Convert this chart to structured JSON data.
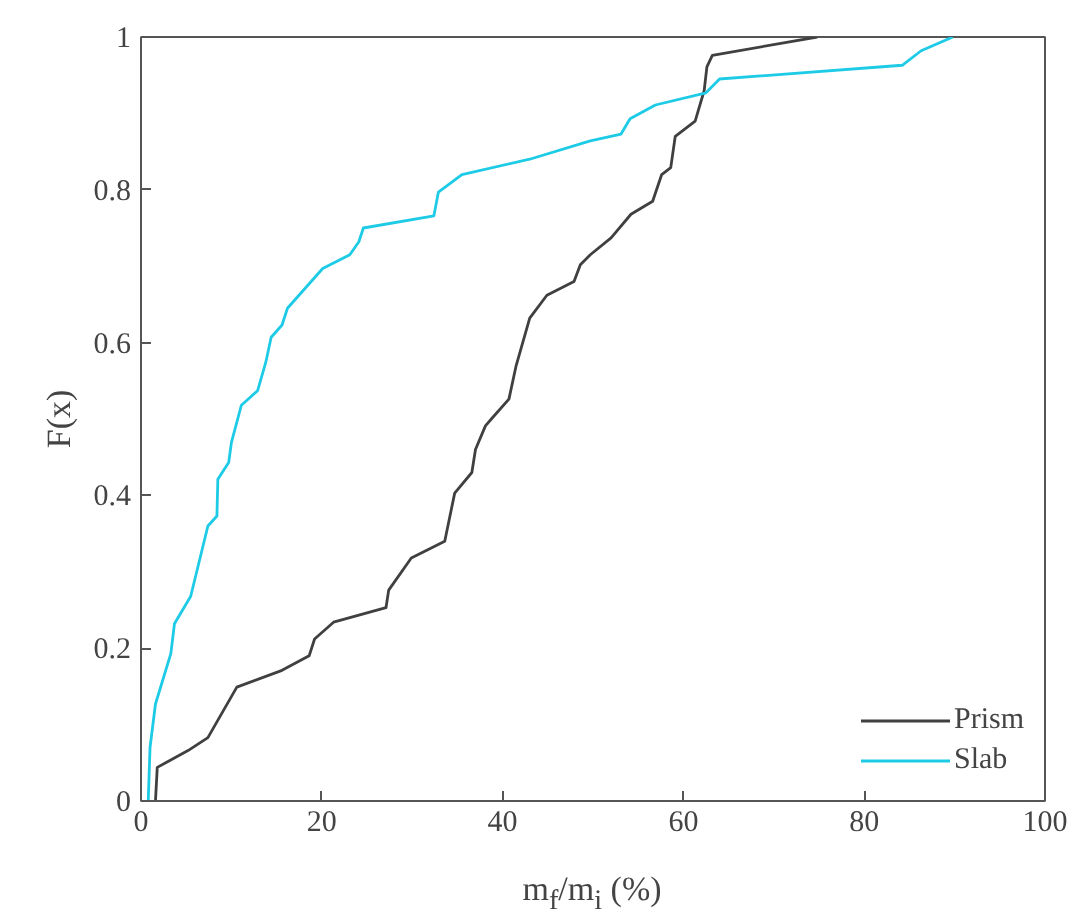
{
  "chart_data": {
    "type": "line",
    "xlabel": "m$_{f}$/m$_{i}$ (%)",
    "ylabel": "F(x)",
    "xlim": [
      0,
      100
    ],
    "ylim": [
      0,
      1
    ],
    "xticks": [
      0,
      20,
      40,
      60,
      80,
      100
    ],
    "yticks": [
      0,
      0.2,
      0.4,
      0.6,
      0.8,
      1
    ],
    "grid": false,
    "legend": "bottom right",
    "line_style": "solid",
    "marker": "none",
    "series": [
      {
        "name": "Prism",
        "color": "#404040",
        "x": [
          1.6,
          1.8,
          5.2,
          7.4,
          10.6,
          15.6,
          18.6,
          19.2,
          21.3,
          27.1,
          27.4,
          29.9,
          33.6,
          34.7,
          36.6,
          37.0,
          38.1,
          38.9,
          40.7,
          41.5,
          43.0,
          44.9,
          47.9,
          48.6,
          49.7,
          52.0,
          54.2,
          56.6,
          57.6,
          58.6,
          59.1,
          61.3,
          62.3,
          62.6,
          63.2,
          74.8
        ],
        "values": [
          0,
          0.044,
          0.066,
          0.083,
          0.149,
          0.171,
          0.19,
          0.212,
          0.234,
          0.253,
          0.276,
          0.318,
          0.34,
          0.403,
          0.43,
          0.46,
          0.491,
          0.502,
          0.526,
          0.57,
          0.632,
          0.662,
          0.68,
          0.702,
          0.715,
          0.737,
          0.768,
          0.785,
          0.82,
          0.829,
          0.87,
          0.89,
          0.93,
          0.961,
          0.976,
          1.0
        ]
      },
      {
        "name": "Slab",
        "color": "#1ecbe6",
        "x": [
          0.8,
          1.0,
          1.6,
          3.3,
          3.7,
          5.5,
          7.4,
          8.4,
          8.5,
          9.7,
          10.0,
          11.1,
          12.9,
          13.8,
          14.4,
          15.6,
          16.2,
          20.1,
          23.1,
          24.1,
          24.6,
          32.4,
          32.9,
          35.5,
          43.0,
          49.7,
          53.1,
          54.1,
          56.9,
          62.5,
          64.0,
          84.2,
          86.3,
          89.8
        ],
        "values": [
          0,
          0.07,
          0.127,
          0.193,
          0.232,
          0.268,
          0.36,
          0.373,
          0.421,
          0.443,
          0.469,
          0.518,
          0.537,
          0.574,
          0.607,
          0.623,
          0.645,
          0.697,
          0.715,
          0.732,
          0.75,
          0.766,
          0.797,
          0.82,
          0.84,
          0.864,
          0.873,
          0.893,
          0.911,
          0.927,
          0.945,
          0.963,
          0.982,
          1.0
        ]
      }
    ]
  }
}
